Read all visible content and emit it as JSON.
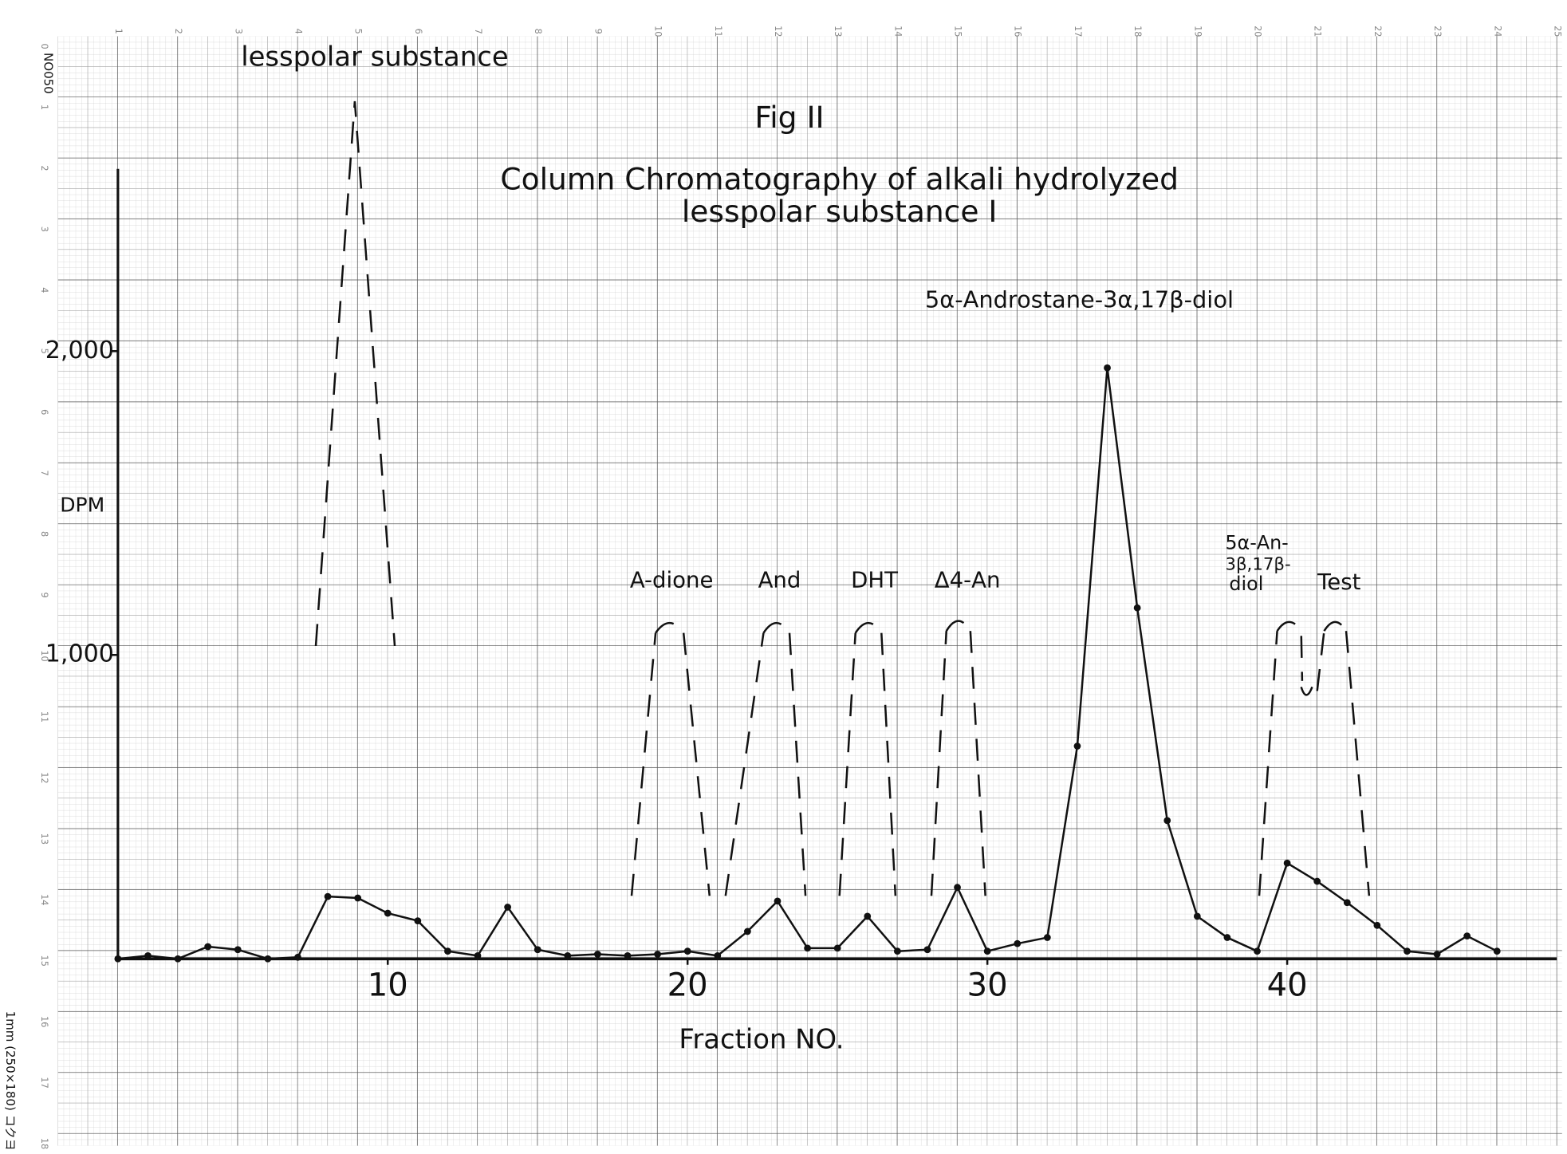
{
  "chart_data": {
    "type": "line",
    "title": "Fig II",
    "subtitle": [
      "Column Chromatography of alkali hydrolyzed",
      "lesspolar substance I"
    ],
    "y_label": "DPM",
    "x_label": "Fraction NO.",
    "annotations": [
      "lesspolar substance",
      "5α-Androstane-3α,17β-diol",
      "A-dione",
      "And",
      "DHT",
      "Δ4-An",
      "5α-An-",
      "3β,17β-",
      "diol",
      "Test"
    ],
    "x": [
      1,
      2,
      3,
      4,
      5,
      6,
      7,
      8,
      9,
      10,
      11,
      12,
      13,
      14,
      15,
      16,
      17,
      18,
      19,
      20,
      21,
      22,
      23,
      24,
      25,
      26,
      27,
      28,
      29,
      30,
      31,
      32,
      33,
      34,
      35,
      36,
      37,
      38,
      39,
      40,
      41,
      42,
      43,
      44,
      45,
      46,
      47
    ],
    "series": [
      {
        "color": "#111111",
        "values": [
          0,
          10,
          0,
          40,
          30,
          0,
          5,
          205,
          200,
          150,
          125,
          25,
          10,
          170,
          30,
          10,
          15,
          10,
          15,
          25,
          10,
          90,
          190,
          35,
          35,
          140,
          25,
          30,
          235,
          25,
          50,
          70,
          700,
          1945,
          1155,
          455,
          140,
          70,
          25,
          315,
          255,
          185,
          110,
          25,
          15,
          75,
          25
        ]
      }
    ],
    "xlim": [
      1,
      49
    ],
    "ylim": [
      0,
      2600
    ],
    "xticks": [
      10,
      20,
      30,
      40
    ],
    "yticks": [
      {
        "value": 1000,
        "label": "1,000"
      },
      {
        "value": 2000,
        "label": "2,000"
      }
    ],
    "grid": true
  },
  "paper": {
    "top_numbers": [
      "1",
      "2",
      "3",
      "4",
      "5",
      "6",
      "7",
      "8",
      "9",
      "10",
      "11",
      "12",
      "13",
      "14",
      "15",
      "16",
      "17",
      "18",
      "19",
      "20",
      "21",
      "22",
      "23",
      "24",
      "25"
    ],
    "left_numbers": [
      "0",
      "1",
      "2",
      "3",
      "4",
      "5",
      "6",
      "7",
      "8",
      "9",
      "10",
      "11",
      "12",
      "13",
      "14",
      "15",
      "16",
      "17",
      "18"
    ],
    "code": "NO050",
    "size": "1mm (250×180) コクヨ"
  }
}
